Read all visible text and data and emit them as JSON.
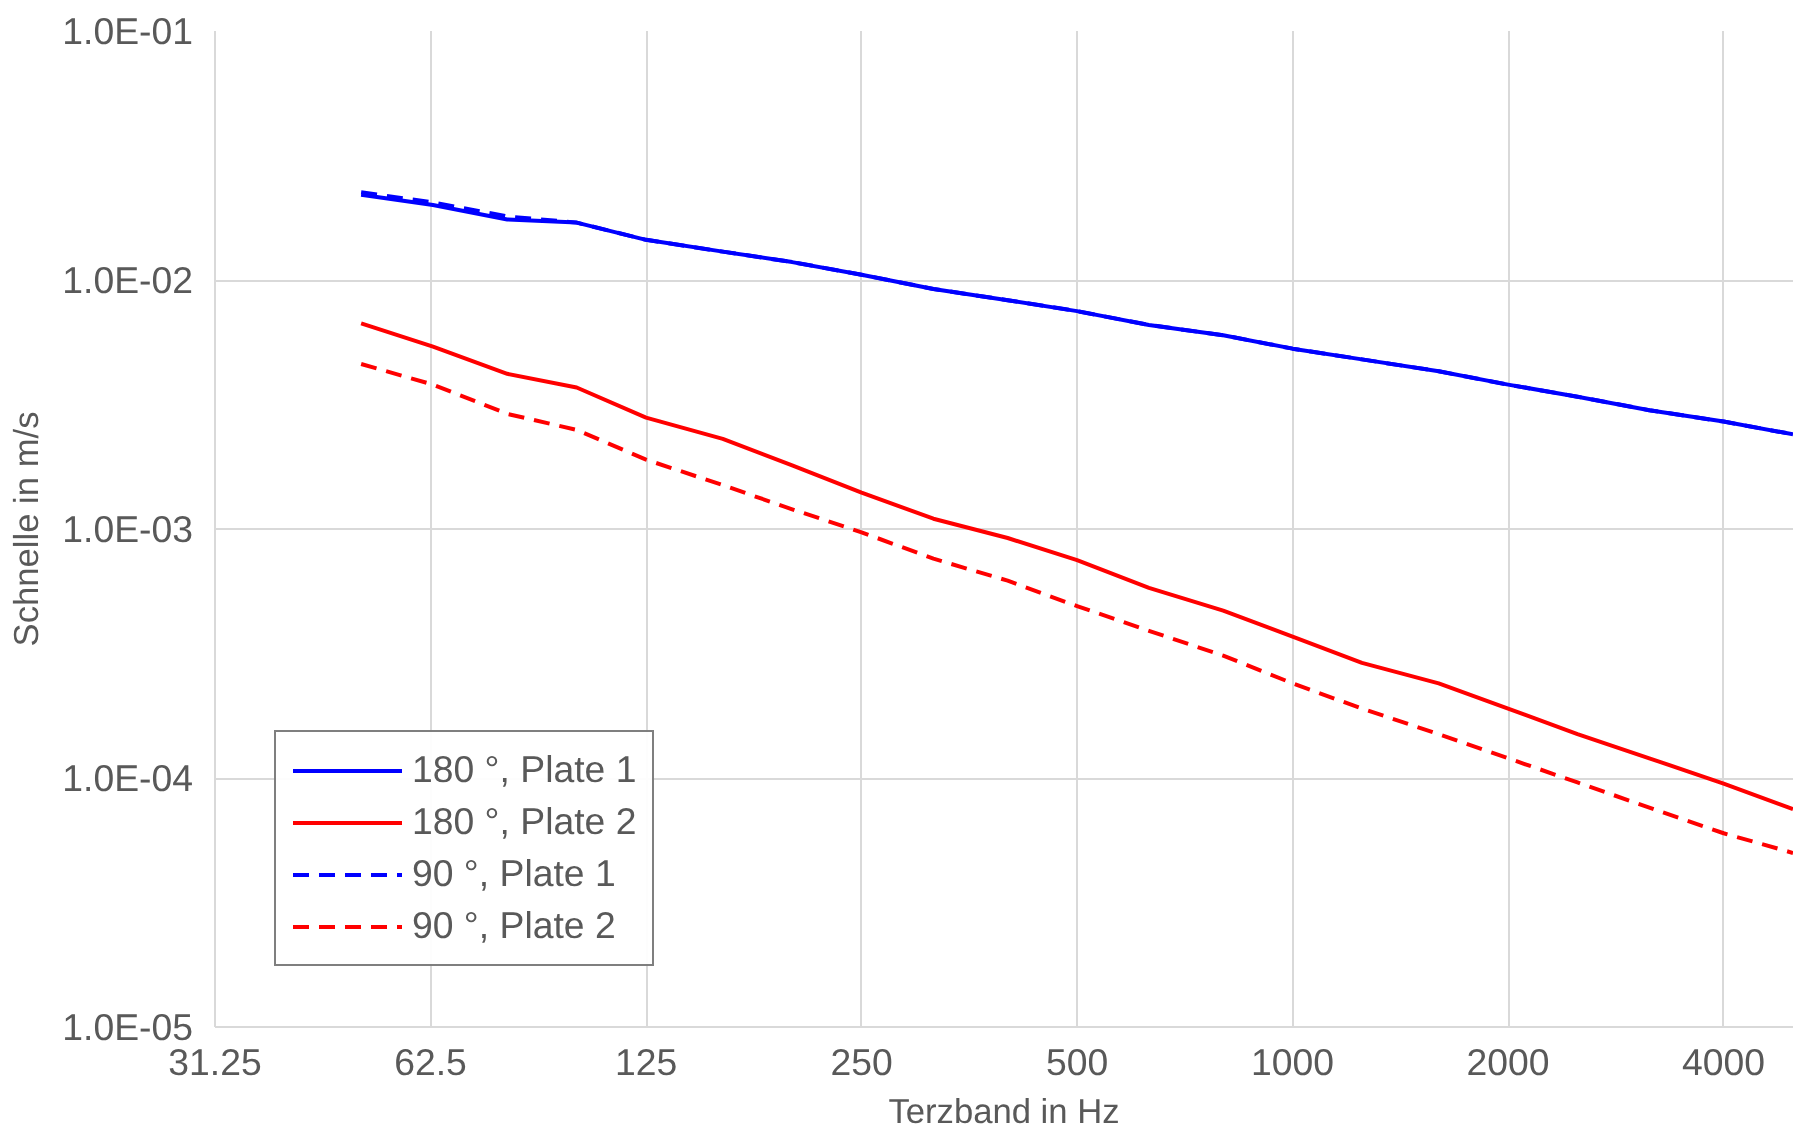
{
  "chart_data": {
    "type": "line",
    "xlabel": "Terzband in Hz",
    "ylabel": "Schnelle in m/s",
    "x": [
      50,
      63,
      80,
      100,
      125,
      160,
      200,
      250,
      315,
      400,
      500,
      630,
      800,
      1000,
      1250,
      1600,
      2000,
      2500,
      3150,
      4000,
      5000
    ],
    "series": [
      {
        "name": "180 °, Plate 1",
        "color": "#0000ff",
        "line_style": "solid",
        "values": [
          0.022,
          0.02,
          0.0175,
          0.017,
          0.0145,
          0.013,
          0.0118,
          0.0105,
          0.0092,
          0.0083,
          0.0075,
          0.0066,
          0.006,
          0.0053,
          0.0048,
          0.0043,
          0.0038,
          0.0034,
          0.003,
          0.0027,
          0.0024
        ]
      },
      {
        "name": "180 °, Plate 2",
        "color": "#ff0000",
        "line_style": "solid",
        "values": [
          0.0067,
          0.0054,
          0.0042,
          0.0037,
          0.0028,
          0.0023,
          0.0018,
          0.0014,
          0.0011,
          0.00092,
          0.00075,
          0.00058,
          0.00047,
          0.00037,
          0.00029,
          0.00024,
          0.00019,
          0.00015,
          0.00012,
          9.5e-05,
          7.5e-05
        ]
      },
      {
        "name": "90 °, Plate 1",
        "color": "#0000ff",
        "line_style": "dashed",
        "values": [
          0.0225,
          0.0205,
          0.018,
          0.017,
          0.0145,
          0.013,
          0.0118,
          0.0105,
          0.0092,
          0.0083,
          0.0075,
          0.0066,
          0.006,
          0.0053,
          0.0048,
          0.0043,
          0.0038,
          0.0034,
          0.003,
          0.0027,
          0.0024
        ]
      },
      {
        "name": "90 °, Plate 2",
        "color": "#ff0000",
        "line_style": "dashed",
        "values": [
          0.0046,
          0.0038,
          0.0029,
          0.0025,
          0.0019,
          0.0015,
          0.0012,
          0.00097,
          0.00076,
          0.00062,
          0.00049,
          0.00039,
          0.00031,
          0.00024,
          0.00019,
          0.00015,
          0.00012,
          9.6e-05,
          7.6e-05,
          6e-05,
          5e-05
        ]
      }
    ],
    "log": "xy",
    "xlim": [
      31.25,
      5000
    ],
    "ylim": [
      1e-05,
      0.1
    ],
    "xticks": [
      31.25,
      62.5,
      125,
      250,
      500,
      1000,
      2000,
      4000
    ],
    "yticks": [
      {
        "value": 1e-05,
        "label": "1.0E-05"
      },
      {
        "value": 0.0001,
        "label": "1.0E-04"
      },
      {
        "value": 0.001,
        "label": "1.0E-03"
      },
      {
        "value": 0.01,
        "label": "1.0E-02"
      },
      {
        "value": 0.1,
        "label": "1.0E-01"
      }
    ],
    "grid": true,
    "legend": "bottom left"
  }
}
